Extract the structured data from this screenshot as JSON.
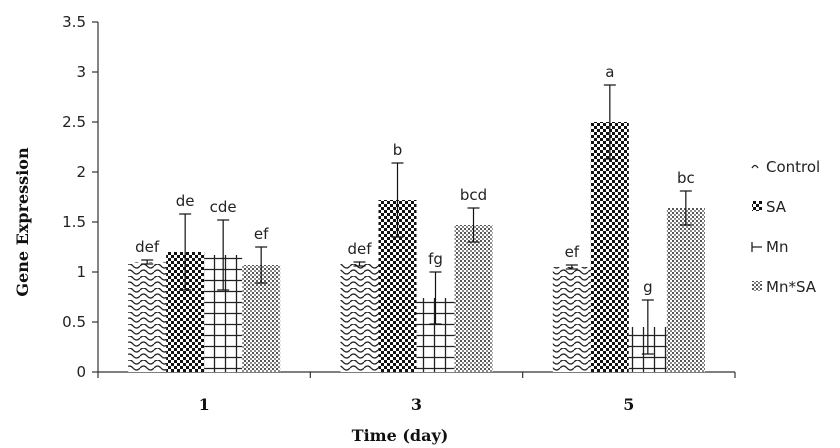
{
  "chart_data": {
    "type": "bar",
    "title": "",
    "xlabel": "Time (day)",
    "ylabel": "Gene Expression",
    "categories": [
      "1",
      "3",
      "5"
    ],
    "ylim": [
      0,
      3.5
    ],
    "yticks": [
      "0",
      "0.5",
      "1",
      "1.5",
      "2",
      "2.5",
      "3",
      "3.5"
    ],
    "grid": false,
    "legend_position": "right",
    "series": [
      {
        "name": "Control",
        "pattern": "waves",
        "values": [
          1.1,
          1.08,
          1.05
        ],
        "errors": [
          0.02,
          0.02,
          0.02
        ],
        "labels": [
          "def",
          "def",
          "ef"
        ]
      },
      {
        "name": "SA",
        "pattern": "checker",
        "values": [
          1.2,
          1.72,
          2.5
        ],
        "errors": [
          0.38,
          0.37,
          0.37
        ],
        "labels": [
          "de",
          "b",
          "a"
        ]
      },
      {
        "name": "Mn",
        "pattern": "grid",
        "values": [
          1.17,
          0.74,
          0.45
        ],
        "errors": [
          0.35,
          0.26,
          0.27
        ],
        "labels": [
          "cde",
          "fg",
          "g"
        ]
      },
      {
        "name": "Mn*SA",
        "pattern": "dots",
        "values": [
          1.07,
          1.47,
          1.64
        ],
        "errors": [
          0.18,
          0.17,
          0.17
        ],
        "labels": [
          "ef",
          "bcd",
          "bc"
        ]
      }
    ]
  }
}
